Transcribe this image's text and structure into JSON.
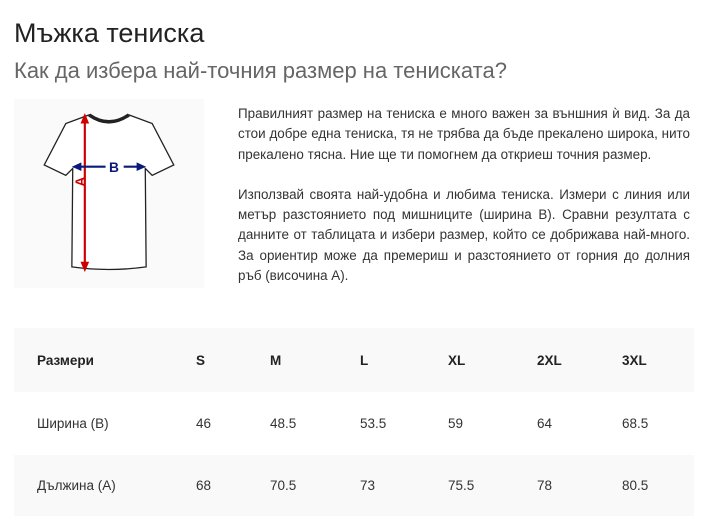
{
  "title": "Мъжка тениска",
  "subtitle": "Как да избера най-точния размер на тениската?",
  "image": {
    "label_a": "A",
    "label_b": "B",
    "color_a": "#cc0000",
    "color_b": "#0a1a7a"
  },
  "paragraphs": [
    "Правилният размер на тениска е много важен за външния ѝ вид. За да стои добре една тениска, тя не трябва да бъде прекалено широка, нито прекалено тясна. Ние ще ти помогнем да откриеш точния размер.",
    "Използвай своята най-удобна и любима тениска. Измери с линия или метър разстоянието под мишниците (ширина B). Сравни резултата с данните от таблицата и избери размер, който се добрижава най-много. За ориентир може да премериш и разстоянието от горния до долния ръб (височина А)."
  ],
  "table": {
    "headers": [
      "Размери",
      "S",
      "M",
      "L",
      "XL",
      "2XL",
      "3XL"
    ],
    "rows": [
      [
        "Ширина (B)",
        "46",
        "48.5",
        "53.5",
        "59",
        "64",
        "68.5"
      ],
      [
        "Дължина (A)",
        "68",
        "70.5",
        "73",
        "75.5",
        "78",
        "80.5"
      ]
    ]
  }
}
